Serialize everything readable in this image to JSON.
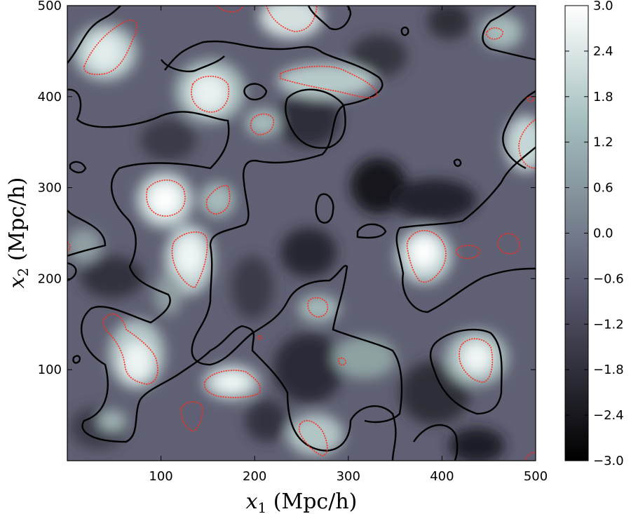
{
  "chart_data": {
    "type": "heatmap",
    "description_free": true,
    "xlabel_var": "x",
    "xlabel_sub": "1",
    "xlabel_unit": " (Mpc/h)",
    "ylabel_var": "x",
    "ylabel_sub": "2",
    "ylabel_unit": " (Mpc/h)",
    "xlim": [
      0,
      500
    ],
    "ylim": [
      0,
      500
    ],
    "xticks": [
      100,
      200,
      300,
      400,
      500
    ],
    "yticks": [
      100,
      200,
      300,
      400,
      500
    ],
    "colorbar": {
      "range": [
        -3.0,
        3.0
      ],
      "ticks": [
        3.0,
        2.4,
        1.8,
        1.2,
        0.6,
        0.0,
        -0.6,
        -1.2,
        -1.8,
        -2.4,
        -3.0
      ],
      "tick_labels": [
        "3.0",
        "2.4",
        "1.8",
        "1.2",
        "0.6",
        "0.0",
        "−0.6",
        "−1.2",
        "−1.8",
        "−2.4",
        "−3.0"
      ],
      "colormap": "bone",
      "color_low": "#000000",
      "color_mid": "#5e5e72",
      "color_high": "#ffffff"
    },
    "contours": [
      {
        "level": 0.0,
        "color": "#000000",
        "style": "solid"
      },
      {
        "level": 2.0,
        "color": "#ff2a1a",
        "style": "dotted"
      }
    ]
  }
}
